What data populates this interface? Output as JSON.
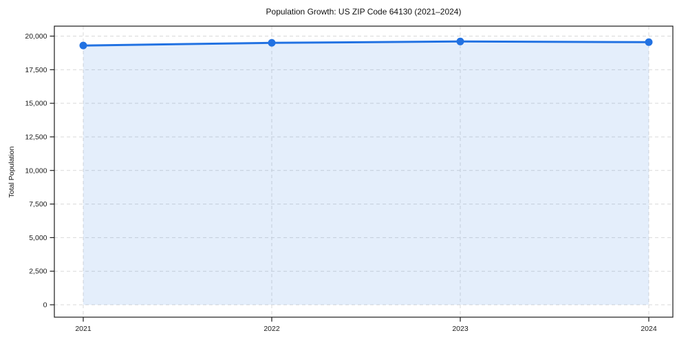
{
  "chart_data": {
    "type": "line",
    "title": "Population Growth: US ZIP Code 64130 (2021–2024)",
    "xlabel": "",
    "ylabel": "Total Population",
    "categories": [
      "2021",
      "2022",
      "2023",
      "2024"
    ],
    "series": [
      {
        "name": "Total Population",
        "values": [
          19300,
          19500,
          19600,
          19550
        ]
      }
    ],
    "ylim": [
      0,
      20000
    ],
    "y_ticks": {
      "values": [
        0,
        2500,
        5000,
        7500,
        10000,
        12500,
        15000,
        17500,
        20000
      ],
      "labels": [
        "0",
        "2,500",
        "5,000",
        "7,500",
        "10,000",
        "12,500",
        "15,000",
        "17,500",
        "20,000"
      ]
    },
    "grid": "dashed",
    "legend": "none",
    "area_fill": true,
    "marker": "circle",
    "colors": {
      "line": "#2272e2",
      "fill": "#2272e2",
      "fill_opacity": 0.12,
      "grid": "#d9d9d9",
      "axis": "#1a1a1a",
      "text": "#1a1a1a",
      "background": "#ffffff"
    }
  }
}
